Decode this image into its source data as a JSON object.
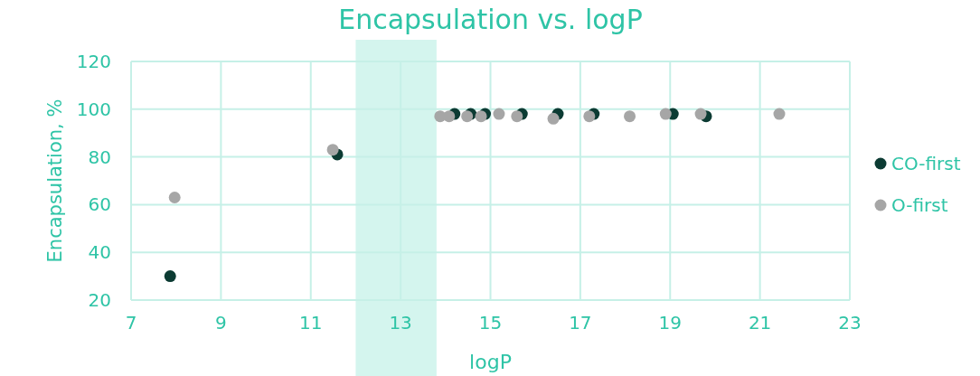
{
  "chart_data": {
    "type": "scatter",
    "title": "Encapsulation vs. logP",
    "xlabel": "logP",
    "ylabel": "Encapsulation, %",
    "xlim": [
      7,
      23
    ],
    "xticks": [
      7,
      9,
      11,
      13,
      15,
      17,
      19,
      21,
      23
    ],
    "ylim": [
      20,
      120
    ],
    "yticks": [
      20,
      40,
      60,
      80,
      100,
      120
    ],
    "grid": true,
    "legend": "right",
    "marker": "circle",
    "bands": [
      {
        "axis": "x",
        "from": 12,
        "to": 13.8,
        "color": "#d4f5ee"
      }
    ],
    "series": [
      {
        "name": "CO-first",
        "color": "#0c3b33",
        "x": [
          7.87,
          11.59,
          14.2,
          14.56,
          14.88,
          15.7,
          16.5,
          17.3,
          19.06,
          19.8
        ],
        "values": [
          30,
          81,
          98,
          98,
          98,
          98,
          98,
          98,
          98,
          97
        ]
      },
      {
        "name": "O-first",
        "color": "#a6a6a6",
        "x": [
          7.97,
          11.49,
          13.88,
          14.08,
          14.48,
          14.79,
          15.19,
          15.59,
          16.4,
          17.2,
          18.1,
          18.9,
          19.68,
          21.43
        ],
        "values": [
          63,
          83,
          97,
          97,
          97,
          97,
          98,
          97,
          96,
          97,
          97,
          98,
          98,
          98
        ]
      }
    ]
  }
}
